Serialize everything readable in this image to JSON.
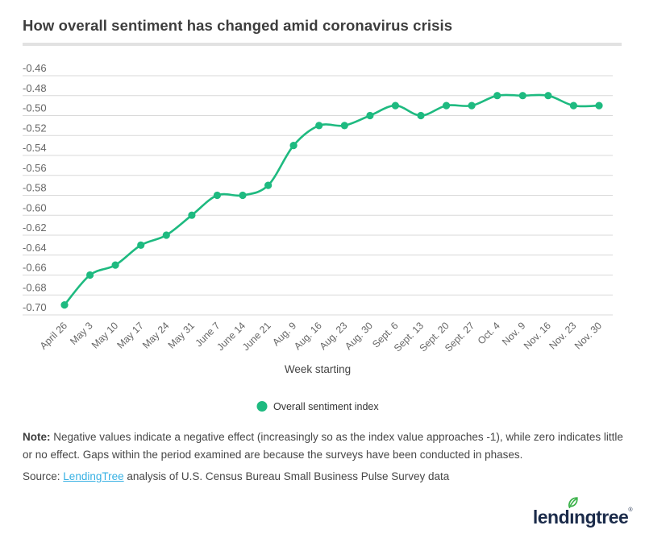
{
  "header": {
    "title": "How overall sentiment has changed amid coronavirus crisis"
  },
  "chart_data": {
    "type": "line",
    "categories": [
      "April 26",
      "May 3",
      "May 10",
      "May 17",
      "May 24",
      "May 31",
      "June 7",
      "June 14",
      "June 21",
      "Aug. 9",
      "Aug. 16",
      "Aug. 23",
      "Aug. 30",
      "Sept. 6",
      "Sept. 13",
      "Sept. 20",
      "Sept. 27",
      "Oct. 4",
      "Nov. 9",
      "Nov. 16",
      "Nov. 23",
      "Nov. 30"
    ],
    "series": [
      {
        "name": "Overall sentiment index",
        "values": [
          -0.69,
          -0.66,
          -0.65,
          -0.63,
          -0.62,
          -0.6,
          -0.58,
          -0.58,
          -0.57,
          -0.53,
          -0.51,
          -0.51,
          -0.5,
          -0.49,
          -0.5,
          -0.49,
          -0.49,
          -0.48,
          -0.48,
          -0.48,
          -0.49,
          -0.49
        ]
      }
    ],
    "xlabel": "Week starting",
    "ylabel": "",
    "ylim": [
      -0.7,
      -0.46
    ],
    "ytick_step": 0.02,
    "grid": true,
    "legend_position": "bottom",
    "line_color": "#1eba80",
    "grid_color": "#d9d9d9",
    "axis_text_color": "#666666"
  },
  "note": {
    "label": "Note:",
    "text": "Negative values indicate a negative effect (increasingly so as the index value approaches -1), while zero indicates little or no effect. Gaps within the period examined are because the surveys have been conducted in phases."
  },
  "source": {
    "prefix": "Source:",
    "link_text": "LendingTree",
    "suffix": "analysis of U.S. Census Bureau Small Business Pulse Survey data"
  },
  "logo": {
    "text": "lendingtree",
    "mark": "®"
  }
}
